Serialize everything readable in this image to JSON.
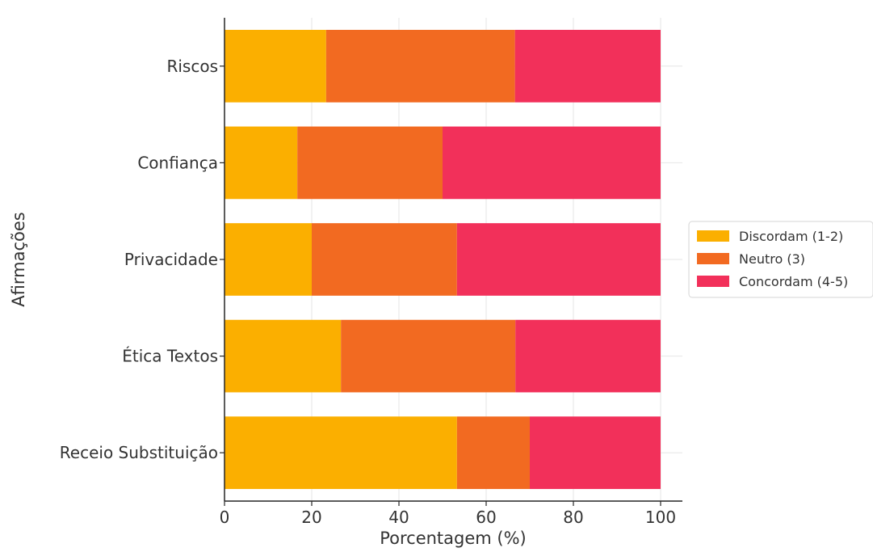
{
  "chart_data": {
    "type": "bar",
    "orientation": "horizontal",
    "stacked": true,
    "categories": [
      "Riscos",
      "Confiança",
      "Privacidade",
      "Ética Textos",
      "Receio Substituição"
    ],
    "series": [
      {
        "name": "Discordam (1-2)",
        "color": "#FBAF00",
        "values": [
          23.3,
          16.7,
          20.0,
          26.7,
          53.3
        ]
      },
      {
        "name": "Neutro (3)",
        "color": "#F26A21",
        "values": [
          43.3,
          33.3,
          33.3,
          40.0,
          16.7
        ]
      },
      {
        "name": "Concordam (4-5)",
        "color": "#F2305A",
        "values": [
          33.4,
          50.0,
          46.7,
          33.3,
          30.0
        ]
      }
    ],
    "xlabel": "Porcentagem (%)",
    "ylabel": "Afirmações",
    "xlim": [
      0,
      105
    ],
    "xticks": [
      "0",
      "20",
      "40",
      "60",
      "80",
      "100"
    ],
    "grid": true,
    "legend": "right"
  }
}
